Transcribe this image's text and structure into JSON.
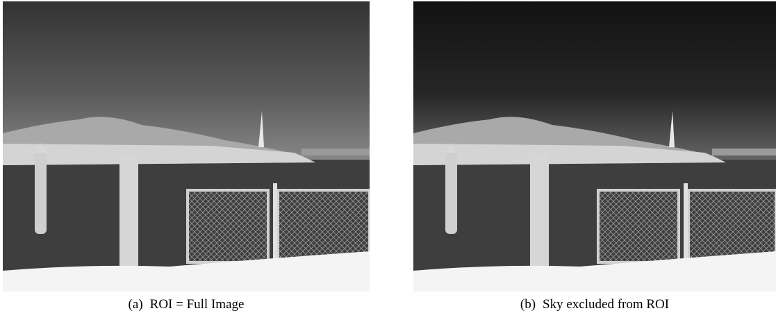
{
  "figures": [
    {
      "label": "(a)",
      "caption": "ROI = Full Image"
    },
    {
      "label": "(b)",
      "caption": "Sky excluded from ROI"
    }
  ]
}
